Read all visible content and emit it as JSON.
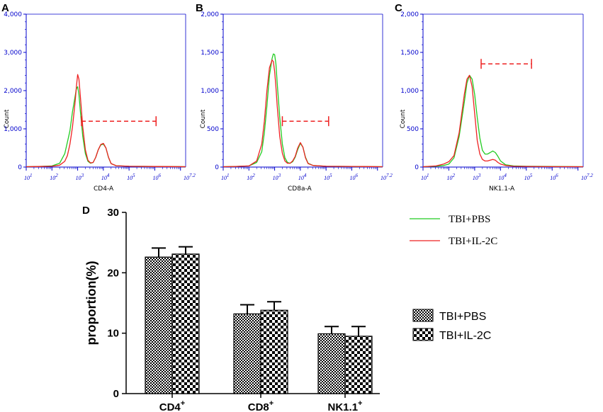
{
  "panel_labels": {
    "a": "A",
    "b": "B",
    "c": "C",
    "d": "D"
  },
  "legend_lines": {
    "green_label": "TBI+PBS",
    "red_label": "TBI+IL-2C",
    "green_color": "#22cc22",
    "red_color": "#ee2222"
  },
  "chart_data": [
    {
      "type": "line",
      "panel": "A",
      "ylabel": "Count",
      "xlabel": "CD4-A",
      "ylim": [
        0,
        4000
      ],
      "yticks": [
        "0",
        "1,000",
        "2,000",
        "3,000",
        "4,000"
      ],
      "xlim": [
        1,
        7.2
      ],
      "xticks": [
        "10^1",
        "10^2",
        "10^3",
        "10^4",
        "10^5",
        "10^6",
        "10^7.2"
      ],
      "gate": {
        "x_start": 3.15,
        "x_end": 6.05,
        "y": 1200
      },
      "series": [
        {
          "name": "TBI+PBS",
          "color": "#22cc22",
          "x": [
            1,
            1.5,
            2,
            2.3,
            2.5,
            2.6,
            2.7,
            2.8,
            2.9,
            2.95,
            3.0,
            3.05,
            3.1,
            3.2,
            3.3,
            3.4,
            3.5,
            3.6,
            3.7,
            3.8,
            3.9,
            4.0,
            4.1,
            4.2,
            4.3,
            4.5,
            5.0,
            6.0,
            7.2
          ],
          "y": [
            10,
            15,
            30,
            100,
            350,
            650,
            950,
            1450,
            1850,
            2050,
            2100,
            1900,
            1500,
            800,
            350,
            150,
            100,
            120,
            250,
            450,
            580,
            600,
            500,
            250,
            90,
            35,
            20,
            15,
            10
          ]
        },
        {
          "name": "TBI+IL-2C",
          "color": "#ee2222",
          "x": [
            1,
            1.5,
            2,
            2.3,
            2.5,
            2.6,
            2.7,
            2.8,
            2.9,
            2.95,
            3.0,
            3.05,
            3.1,
            3.2,
            3.3,
            3.4,
            3.5,
            3.6,
            3.7,
            3.8,
            3.9,
            4.0,
            4.1,
            4.2,
            4.3,
            4.5,
            5.0,
            6.0,
            7.2
          ],
          "y": [
            10,
            15,
            20,
            50,
            150,
            300,
            600,
            1050,
            1700,
            2100,
            2420,
            2300,
            1900,
            1050,
            450,
            180,
            110,
            120,
            250,
            450,
            590,
            620,
            500,
            260,
            90,
            35,
            20,
            15,
            10
          ]
        }
      ]
    },
    {
      "type": "line",
      "panel": "B",
      "ylabel": "Count",
      "xlabel": "CD8a-A",
      "ylim": [
        0,
        2000
      ],
      "yticks": [
        "0",
        "500",
        "1,000",
        "1,500",
        "2,000"
      ],
      "xlim": [
        1,
        7.2
      ],
      "xticks": [
        "10^1",
        "10^2",
        "10^3",
        "10^4",
        "10^5",
        "10^6",
        "10^7.2"
      ],
      "gate": {
        "x_start": 3.3,
        "x_end": 5.1,
        "y": 600
      },
      "series": [
        {
          "name": "TBI+PBS",
          "color": "#22cc22",
          "x": [
            1,
            1.5,
            2,
            2.3,
            2.5,
            2.6,
            2.7,
            2.8,
            2.9,
            2.95,
            3.0,
            3.05,
            3.1,
            3.2,
            3.3,
            3.4,
            3.5,
            3.6,
            3.7,
            3.8,
            3.9,
            4.0,
            4.1,
            4.2,
            4.3,
            4.5,
            5.0,
            6.0,
            7.2
          ],
          "y": [
            5,
            8,
            15,
            60,
            200,
            450,
            800,
            1200,
            1420,
            1480,
            1470,
            1350,
            1100,
            650,
            300,
            120,
            60,
            50,
            70,
            130,
            230,
            310,
            260,
            130,
            50,
            20,
            10,
            8,
            5
          ]
        },
        {
          "name": "TBI+IL-2C",
          "color": "#ee2222",
          "x": [
            1,
            1.5,
            2,
            2.3,
            2.5,
            2.6,
            2.7,
            2.8,
            2.9,
            2.95,
            3.0,
            3.05,
            3.1,
            3.2,
            3.3,
            3.4,
            3.5,
            3.6,
            3.7,
            3.8,
            3.9,
            4.0,
            4.1,
            4.2,
            4.3,
            4.5,
            5.0,
            6.0,
            7.2
          ],
          "y": [
            5,
            8,
            15,
            80,
            300,
            600,
            1000,
            1300,
            1400,
            1380,
            1250,
            1050,
            800,
            400,
            180,
            80,
            50,
            50,
            80,
            140,
            250,
            320,
            260,
            120,
            45,
            20,
            10,
            8,
            5
          ]
        }
      ]
    },
    {
      "type": "line",
      "panel": "C",
      "ylabel": "Count",
      "xlabel": "NK1.1-A",
      "ylim": [
        0,
        2000
      ],
      "yticks": [
        "0",
        "500",
        "1,000",
        "1,500",
        "2,000"
      ],
      "xlim": [
        1,
        7.2
      ],
      "xticks": [
        "10^1",
        "10^2",
        "10^3",
        "10^4",
        "10^5",
        "10^6",
        "10^7.2"
      ],
      "gate": {
        "x_start": 3.25,
        "x_end": 5.2,
        "y": 1350
      },
      "series": [
        {
          "name": "TBI+PBS",
          "color": "#22cc22",
          "x": [
            1,
            1.5,
            1.8,
            2.0,
            2.2,
            2.4,
            2.6,
            2.7,
            2.8,
            2.9,
            3.0,
            3.1,
            3.2,
            3.3,
            3.4,
            3.5,
            3.6,
            3.7,
            3.8,
            3.9,
            4.0,
            4.2,
            4.5,
            5.0,
            6.0,
            7.2
          ],
          "y": [
            5,
            10,
            20,
            40,
            120,
            400,
            850,
            1100,
            1200,
            1150,
            950,
            650,
            380,
            220,
            170,
            170,
            190,
            210,
            190,
            140,
            80,
            30,
            15,
            10,
            8,
            5
          ]
        },
        {
          "name": "TBI+IL-2C",
          "color": "#ee2222",
          "x": [
            1,
            1.5,
            1.8,
            2.0,
            2.2,
            2.4,
            2.6,
            2.7,
            2.8,
            2.9,
            3.0,
            3.1,
            3.2,
            3.3,
            3.4,
            3.5,
            3.6,
            3.7,
            3.8,
            3.9,
            4.0,
            4.2,
            4.5,
            5.0,
            6.0,
            7.2
          ],
          "y": [
            5,
            15,
            40,
            70,
            150,
            450,
            950,
            1150,
            1200,
            1050,
            700,
            350,
            170,
            100,
            80,
            80,
            90,
            100,
            90,
            60,
            40,
            20,
            10,
            8,
            6,
            5
          ]
        }
      ]
    },
    {
      "type": "bar",
      "panel": "D",
      "ylabel": "proportion(%)",
      "categories": [
        "CD4",
        "CD8",
        "NK1.1"
      ],
      "category_superscript": "+",
      "ylim": [
        0,
        30
      ],
      "yticks": [
        0,
        10,
        20,
        30
      ],
      "series": [
        {
          "name": "TBI+PBS",
          "pattern": "fine-check",
          "values": [
            22.6,
            13.2,
            9.9
          ],
          "errors": [
            1.5,
            1.5,
            1.2
          ]
        },
        {
          "name": "TBI+IL-2C",
          "pattern": "coarse-check",
          "values": [
            23.1,
            13.8,
            9.5
          ],
          "errors": [
            1.2,
            1.4,
            1.6
          ]
        }
      ]
    }
  ]
}
